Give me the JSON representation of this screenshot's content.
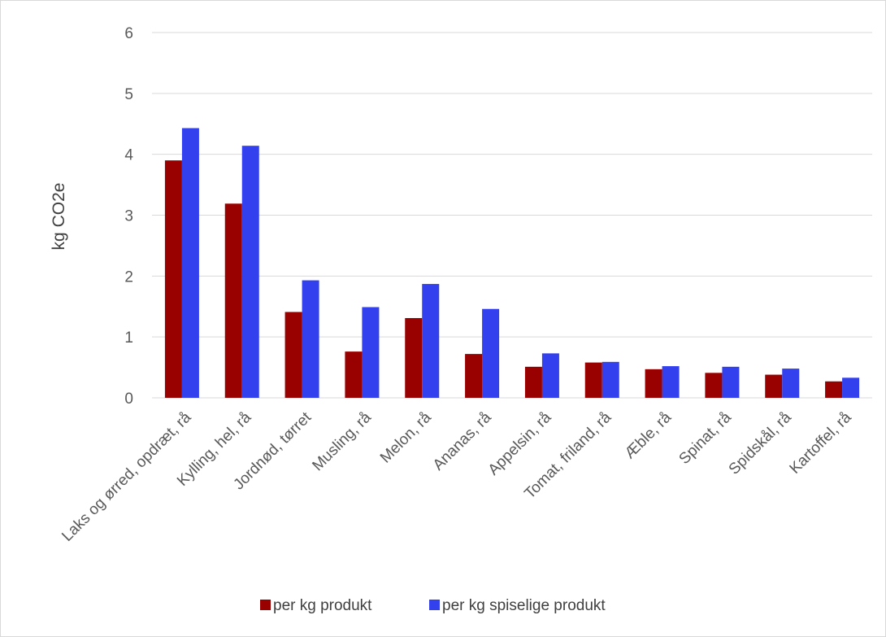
{
  "chart_data": {
    "type": "bar",
    "title": "",
    "xlabel": "",
    "ylabel": "kg CO2e",
    "ylim": [
      0,
      6
    ],
    "yticks": [
      0,
      1,
      2,
      3,
      4,
      5,
      6
    ],
    "grid": true,
    "legend_position": "bottom",
    "categories": [
      "Laks og ørred, opdræt, rå",
      "Kylling, hel, rå",
      "Jordnød, tørret",
      "Musling, rå",
      "Melon, rå",
      "Ananas, rå",
      "Appelsin, rå",
      "Tomat, friland, rå",
      "Æble, rå",
      "Spinat, rå",
      "Spidskål, rå",
      "Kartoffel, rå"
    ],
    "series": [
      {
        "name": "per kg produkt",
        "color": "#990000",
        "values": [
          3.9,
          3.19,
          1.41,
          0.76,
          1.31,
          0.72,
          0.51,
          0.58,
          0.47,
          0.41,
          0.38,
          0.27
        ]
      },
      {
        "name": "per kg spiselige produkt",
        "color": "#3340ee",
        "values": [
          4.43,
          4.14,
          1.93,
          1.49,
          1.87,
          1.46,
          0.73,
          0.59,
          0.52,
          0.51,
          0.48,
          0.33
        ]
      }
    ]
  }
}
